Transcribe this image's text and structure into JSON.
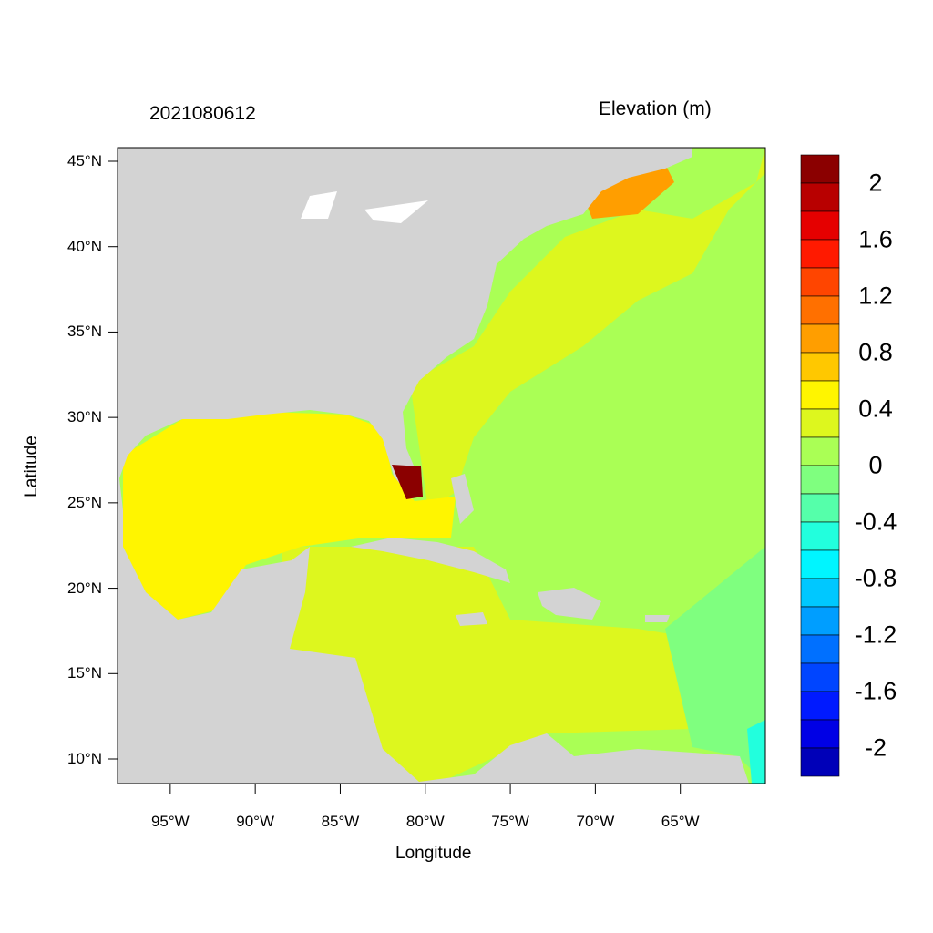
{
  "title_left": "2021080612",
  "title_right": "Elevation (m)",
  "x_axis": {
    "label": "Longitude",
    "ticks": [
      "95°W",
      "90°W",
      "85°W",
      "80°W",
      "75°W",
      "70°W",
      "65°W"
    ],
    "tick_lon": [
      -95,
      -90,
      -85,
      -80,
      -75,
      -70,
      -65
    ],
    "range": [
      -98.1,
      -60.0
    ]
  },
  "y_axis": {
    "label": "Latitude",
    "ticks": [
      "45°N",
      "40°N",
      "35°N",
      "30°N",
      "25°N",
      "20°N",
      "15°N",
      "10°N"
    ],
    "tick_lat": [
      45,
      40,
      35,
      30,
      25,
      20,
      15,
      10
    ],
    "range": [
      8.56,
      45.8
    ]
  },
  "colorbar": {
    "labels": [
      "2",
      "1.6",
      "1.2",
      "0.8",
      "0.4",
      "0",
      "-0.4",
      "-0.8",
      "-1.2",
      "-1.6",
      "-2"
    ],
    "colors": [
      "#8b0000",
      "#b80000",
      "#e50000",
      "#ff1a00",
      "#ff4500",
      "#ff7000",
      "#ff9e00",
      "#ffc800",
      "#fff500",
      "#ddf71e",
      "#aaff55",
      "#7fff7f",
      "#55ffaa",
      "#22ffdd",
      "#00f5ff",
      "#00c8ff",
      "#009eff",
      "#0070ff",
      "#0045ff",
      "#001aff",
      "#0000e5",
      "#0000b8"
    ]
  },
  "colors": {
    "land": "#d3d3d3",
    "gulf": "#fff500",
    "caribbean": "#ddf71e",
    "atlantic": "#aaff55",
    "east_caribbean": "#7fff7f"
  }
}
